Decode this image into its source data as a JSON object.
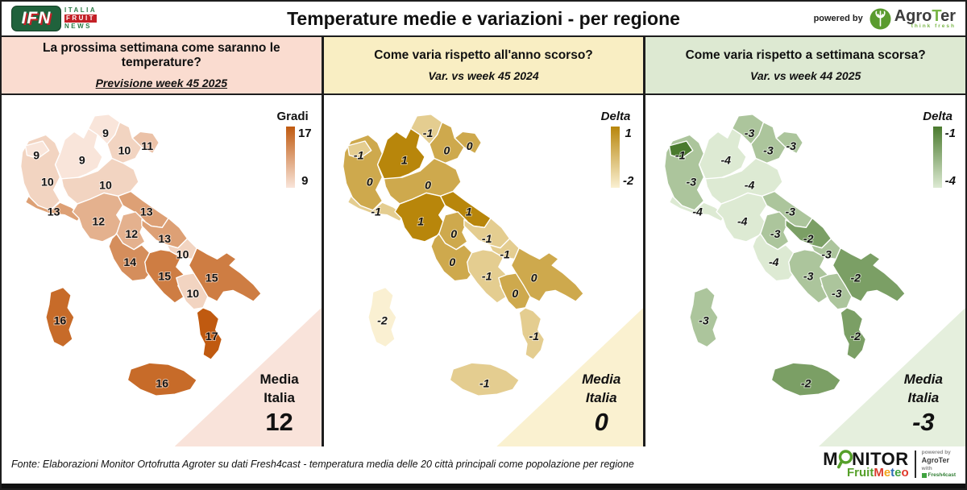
{
  "header": {
    "title": "Temperature medie e variazioni - per regione",
    "powered_by": "powered by",
    "ifn": {
      "abbr": "IFN",
      "line1": "ITALIA",
      "line2": "FRUIT",
      "line3": "NEWS"
    },
    "agroter": {
      "part1": "Agro",
      "part2": "T",
      "part3": "er",
      "tagline": "think fresh",
      "brand_green": "#5a9b2f"
    }
  },
  "panels": [
    {
      "question": "La prossima settimana come saranno le temperature?",
      "subtitle": "Previsione week 45 2025",
      "legend_title": "Gradi",
      "legend_max": "17",
      "legend_min": "9",
      "media_line1": "Media",
      "media_line2": "Italia",
      "media_value": "12",
      "colors": {
        "header_bg": "#fadcd0",
        "triangle_bg": "#f9e3da",
        "scale_light": "#f9e5da",
        "scale_dark": "#c05a10"
      },
      "scale": {
        "min": 9,
        "max": 17
      }
    },
    {
      "question": "Come varia rispetto all'anno scorso?",
      "subtitle": "Var. vs week 45 2024",
      "legend_title": "Delta",
      "legend_max": "1",
      "legend_min": "-2",
      "media_line1": "Media",
      "media_line2": "Italia",
      "media_value": "0",
      "colors": {
        "header_bg": "#f9eec3",
        "triangle_bg": "#faf1d0",
        "scale_light": "#faf0d2",
        "scale_dark": "#b8860b"
      },
      "scale": {
        "min": -2,
        "max": 1
      }
    },
    {
      "question": "Come varia rispetto a settimana scorsa?",
      "subtitle": "Var. vs week 44 2025",
      "legend_title": "Delta",
      "legend_max": "-1",
      "legend_min": "-4",
      "media_line1": "Media",
      "media_line2": "Italia",
      "media_value": "-3",
      "colors": {
        "header_bg": "#dde9d2",
        "triangle_bg": "#e5efdd",
        "scale_light": "#ddead3",
        "scale_dark": "#4a7a2e"
      },
      "scale": {
        "min": -4,
        "max": -1
      }
    }
  ],
  "chart_data": [
    {
      "type": "heatmap",
      "title": "La prossima settimana come saranno le temperature?",
      "subtitle": "Previsione week 45 2025",
      "unit": "Gradi",
      "legend": {
        "title": "Gradi",
        "max": 17,
        "min": 9
      },
      "media_italia": 12,
      "regions": {
        "Valle d'Aosta": 9,
        "Piemonte": 10,
        "Lombardia": 9,
        "Trentino-Alto Adige": 9,
        "Veneto": 10,
        "Friuli-Venezia Giulia": 11,
        "Liguria": 13,
        "Emilia-Romagna": 10,
        "Toscana": 12,
        "Umbria": 12,
        "Marche": 13,
        "Lazio": 14,
        "Abruzzo": 13,
        "Molise": 10,
        "Campania": 15,
        "Puglia": 15,
        "Basilicata": 10,
        "Calabria": 17,
        "Sicilia": 16,
        "Sardegna": 16
      }
    },
    {
      "type": "heatmap",
      "title": "Come varia rispetto all'anno scorso?",
      "subtitle": "Var. vs week 45 2024",
      "unit": "Delta",
      "legend": {
        "title": "Delta",
        "max": 1,
        "min": -2
      },
      "media_italia": 0,
      "regions": {
        "Valle d'Aosta": -1,
        "Piemonte": 0,
        "Lombardia": 1,
        "Trentino-Alto Adige": -1,
        "Veneto": 0,
        "Friuli-Venezia Giulia": 0,
        "Liguria": -1,
        "Emilia-Romagna": 0,
        "Toscana": 1,
        "Umbria": 0,
        "Marche": 1,
        "Lazio": 0,
        "Abruzzo": -1,
        "Molise": -1,
        "Campania": -1,
        "Puglia": 0,
        "Basilicata": 0,
        "Calabria": -1,
        "Sicilia": -1,
        "Sardegna": -2
      }
    },
    {
      "type": "heatmap",
      "title": "Come varia rispetto a settimana scorsa?",
      "subtitle": "Var. vs week 44 2025",
      "unit": "Delta",
      "legend": {
        "title": "Delta",
        "max": -1,
        "min": -4
      },
      "media_italia": -3,
      "regions": {
        "Valle d'Aosta": -1,
        "Piemonte": -3,
        "Lombardia": -4,
        "Trentino-Alto Adige": -3,
        "Veneto": -3,
        "Friuli-Venezia Giulia": -3,
        "Liguria": -4,
        "Emilia-Romagna": -4,
        "Toscana": -4,
        "Umbria": -3,
        "Marche": -3,
        "Lazio": -4,
        "Abruzzo": -2,
        "Molise": -3,
        "Campania": -3,
        "Puglia": -2,
        "Basilicata": -3,
        "Calabria": -2,
        "Sicilia": -2,
        "Sardegna": -3
      }
    }
  ],
  "footer": {
    "fonte": "Fonte: Elaborazioni Monitor Ortofrutta Agroter su dati Fresh4cast - temperatura media delle 20 città principali come popolazione per regione",
    "monitor": {
      "word": "MONITOR",
      "fruit": "Fruit",
      "meteo": "Meteo",
      "meteo_colors": [
        "#d93a2b",
        "#f2a51c",
        "#2e6db4",
        "#3fa33f",
        "#e0392b"
      ],
      "powered_by": "powered by",
      "agroter": "AgroTer",
      "with_label": "with",
      "fresh4cast": "Fresh4cast"
    }
  }
}
